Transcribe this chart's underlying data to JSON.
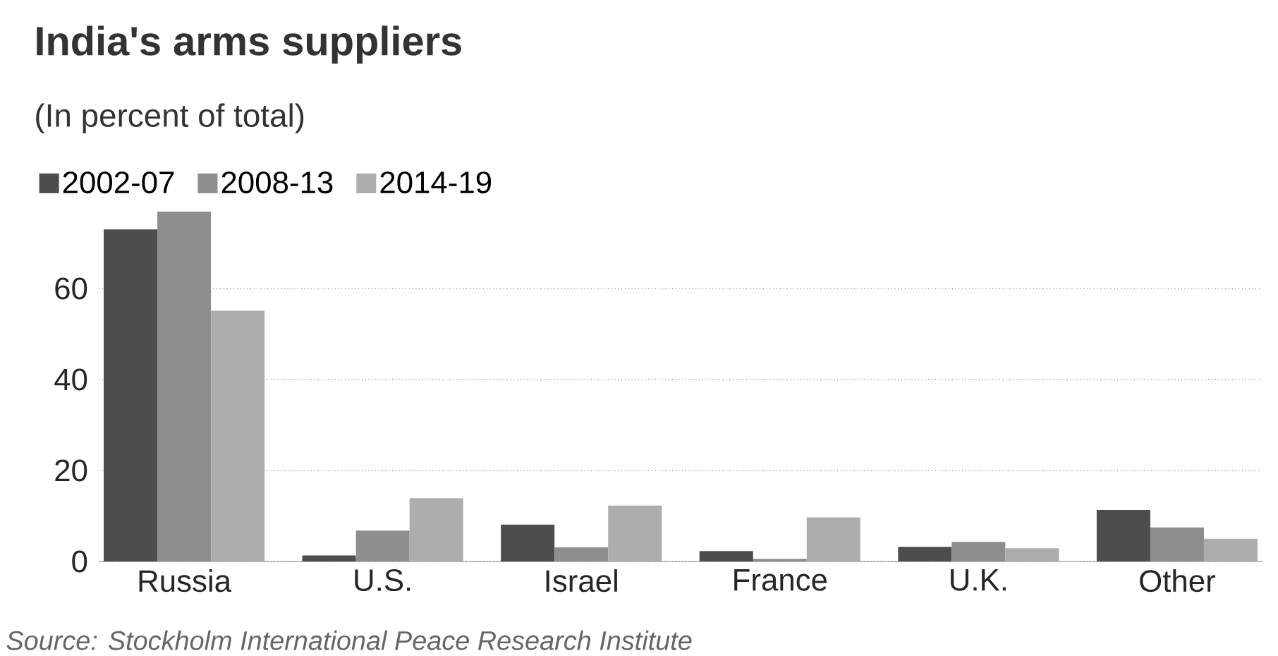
{
  "chart_data": {
    "type": "bar",
    "title": "India's arms suppliers",
    "subtitle": "(In percent of total)",
    "categories": [
      "Russia",
      "U.S.",
      "Israel",
      "France",
      "U.K.",
      "Other"
    ],
    "series": [
      {
        "name": "2002-07",
        "color": "#4d4d4f",
        "values": [
          73.0,
          1.3,
          8.1,
          2.3,
          3.2,
          11.3
        ]
      },
      {
        "name": "2008-13",
        "color": "#8e8e90",
        "values": [
          76.9,
          6.8,
          3.1,
          0.6,
          4.3,
          7.5
        ]
      },
      {
        "name": "2014-19",
        "color": "#adadaf",
        "values": [
          55.1,
          13.9,
          12.3,
          9.7,
          2.9,
          5.0
        ]
      }
    ],
    "ylim": [
      0,
      76.9
    ],
    "yticks": [
      0,
      20,
      40,
      60
    ],
    "grid": "y",
    "legend": "top left",
    "annotations": [
      "Source: Stockholm International Peace Research Institute"
    ]
  }
}
